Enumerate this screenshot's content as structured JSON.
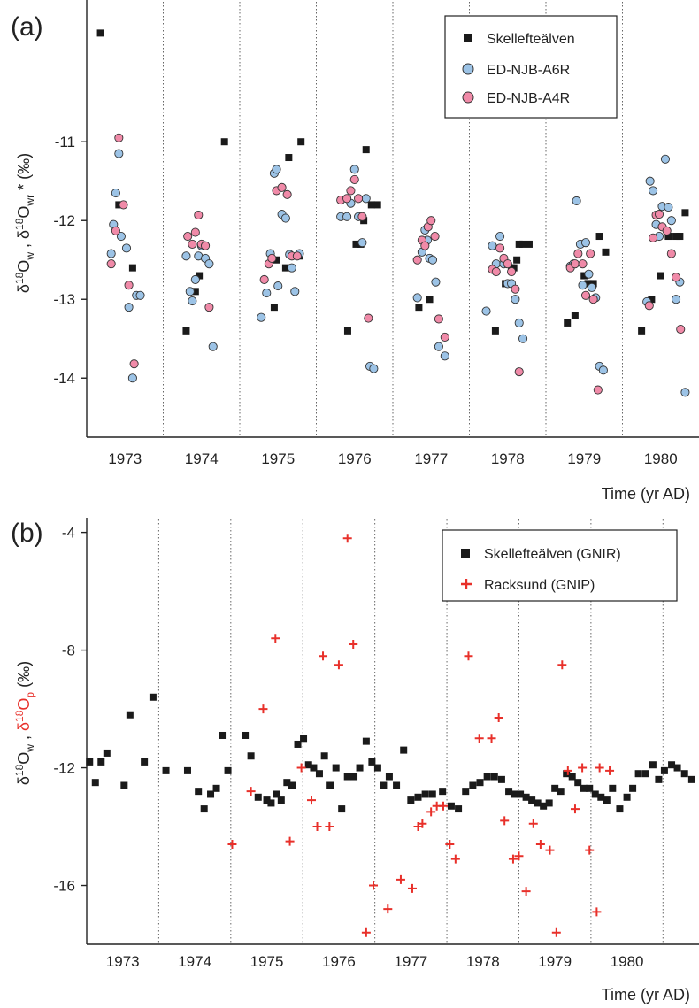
{
  "chart_data": [
    {
      "panel": "(a)",
      "type": "scatter",
      "xlabel": "Time (yr AD)",
      "ylabel": {
        "base": "δ",
        "sup1": "18",
        "o1": "O",
        "sub1": "w",
        "sep": " ,  δ",
        "sup2": "18",
        "o2": "O",
        "sub2": "wr",
        "tail": " * (‰)"
      },
      "ylim": [
        -14.75,
        -9.2
      ],
      "yticks": [
        -11,
        -12,
        -13,
        -14
      ],
      "xlim": [
        1973.0,
        1981.0
      ],
      "year_labels": [
        "1973",
        "1974",
        "1975",
        "1976",
        "1977",
        "1978",
        "1979",
        "1980"
      ],
      "legend": {
        "position": "top-right",
        "entries": [
          "Skellefteälven",
          "ED-NJB-A6R",
          "ED-NJB-A4R"
        ]
      },
      "colors": {
        "skelleftealven": "#1a1a1a",
        "a6r": "#9cc3e6",
        "a4r": "#f08aa8",
        "edge": "#333333"
      },
      "series": [
        {
          "name": "Skellefteälven",
          "marker": "square",
          "x": [
            1973.18,
            1973.42,
            1973.6,
            1974.3,
            1974.42,
            1974.47,
            1974.8,
            1975.45,
            1975.48,
            1975.6,
            1975.64,
            1975.78,
            1975.8,
            1976.41,
            1976.52,
            1976.58,
            1976.62,
            1976.65,
            1976.72,
            1976.8,
            1977.34,
            1977.48,
            1978.34,
            1978.47,
            1978.55,
            1978.58,
            1978.62,
            1978.65,
            1978.7,
            1978.78,
            1979.28,
            1979.38,
            1979.5,
            1979.55,
            1979.62,
            1979.7,
            1979.78,
            1980.25,
            1980.38,
            1980.5,
            1980.6,
            1980.7,
            1980.75,
            1980.82
          ],
          "y": [
            -9.62,
            -11.8,
            -12.6,
            -13.4,
            -12.9,
            -12.7,
            -11.0,
            -13.1,
            -12.5,
            -12.6,
            -11.2,
            -12.45,
            -11.0,
            -13.4,
            -12.3,
            -12.3,
            -12.0,
            -11.1,
            -11.8,
            -11.8,
            -13.1,
            -13.0,
            -13.4,
            -12.8,
            -12.6,
            -12.6,
            -12.5,
            -12.3,
            -12.3,
            -12.3,
            -13.3,
            -13.2,
            -12.7,
            -12.8,
            -12.8,
            -12.2,
            -12.4,
            -13.4,
            -13.0,
            -12.7,
            -12.2,
            -12.2,
            -12.2,
            -11.9
          ]
        },
        {
          "name": "ED-NJB-A6R",
          "marker": "circle",
          "x": [
            1973.32,
            1973.35,
            1973.38,
            1973.42,
            1973.45,
            1973.52,
            1973.55,
            1973.6,
            1973.65,
            1973.7,
            1974.3,
            1974.35,
            1974.38,
            1974.42,
            1974.46,
            1974.5,
            1974.55,
            1974.6,
            1974.65,
            1975.28,
            1975.35,
            1975.4,
            1975.45,
            1975.48,
            1975.5,
            1975.55,
            1975.6,
            1975.65,
            1975.68,
            1975.72,
            1975.78,
            1976.32,
            1976.4,
            1976.45,
            1976.5,
            1976.55,
            1976.6,
            1976.65,
            1976.7,
            1976.75,
            1977.32,
            1977.38,
            1977.42,
            1977.45,
            1977.48,
            1977.52,
            1977.56,
            1977.6,
            1977.68,
            1978.22,
            1978.3,
            1978.35,
            1978.4,
            1978.45,
            1978.5,
            1978.55,
            1978.6,
            1978.65,
            1978.7,
            1979.32,
            1979.36,
            1979.4,
            1979.45,
            1979.48,
            1979.52,
            1979.56,
            1979.6,
            1979.65,
            1979.7,
            1979.75,
            1980.32,
            1980.36,
            1980.4,
            1980.44,
            1980.48,
            1980.52,
            1980.56,
            1980.6,
            1980.64,
            1980.7,
            1980.75,
            1980.82
          ],
          "y": [
            -12.42,
            -12.05,
            -11.65,
            -11.15,
            -12.2,
            -12.35,
            -13.1,
            -14.0,
            -12.95,
            -12.95,
            -12.45,
            -12.9,
            -13.02,
            -12.75,
            -12.45,
            -12.32,
            -12.48,
            -12.55,
            -13.6,
            -13.23,
            -12.92,
            -12.42,
            -11.4,
            -11.35,
            -12.83,
            -11.92,
            -11.97,
            -12.43,
            -12.6,
            -12.9,
            -12.42,
            -11.95,
            -11.95,
            -11.78,
            -11.35,
            -11.95,
            -12.28,
            -11.72,
            -13.85,
            -13.88,
            -12.98,
            -12.4,
            -12.12,
            -12.25,
            -12.48,
            -12.5,
            -12.78,
            -13.6,
            -13.72,
            -13.15,
            -12.32,
            -12.55,
            -12.2,
            -12.55,
            -12.8,
            -12.8,
            -13.0,
            -13.3,
            -13.5,
            -12.58,
            -12.55,
            -11.75,
            -12.3,
            -12.82,
            -12.28,
            -12.68,
            -12.85,
            -12.98,
            -13.85,
            -13.9,
            -13.03,
            -11.5,
            -11.62,
            -12.05,
            -12.2,
            -11.82,
            -11.22,
            -11.83,
            -12.0,
            -13.0,
            -12.78,
            -14.18
          ]
        },
        {
          "name": "ED-NJB-A4R",
          "marker": "circle",
          "x": [
            1973.32,
            1973.38,
            1973.42,
            1973.48,
            1973.55,
            1973.62,
            1974.32,
            1974.38,
            1974.42,
            1974.46,
            1974.5,
            1974.55,
            1974.6,
            1975.32,
            1975.38,
            1975.42,
            1975.48,
            1975.55,
            1975.62,
            1975.68,
            1975.75,
            1976.32,
            1976.4,
            1976.45,
            1976.5,
            1976.55,
            1976.6,
            1976.68,
            1977.32,
            1977.38,
            1977.42,
            1977.46,
            1977.5,
            1977.55,
            1977.6,
            1977.68,
            1978.3,
            1978.35,
            1978.4,
            1978.45,
            1978.5,
            1978.55,
            1978.6,
            1978.65,
            1979.32,
            1979.38,
            1979.42,
            1979.48,
            1979.52,
            1979.58,
            1979.62,
            1979.68,
            1980.35,
            1980.4,
            1980.44,
            1980.48,
            1980.52,
            1980.58,
            1980.64,
            1980.7,
            1980.76
          ],
          "y": [
            -12.55,
            -12.13,
            -10.95,
            -11.8,
            -12.82,
            -13.82,
            -12.2,
            -12.3,
            -12.15,
            -11.93,
            -12.3,
            -12.32,
            -13.1,
            -12.75,
            -12.55,
            -12.48,
            -11.62,
            -11.58,
            -11.67,
            -12.45,
            -12.45,
            -11.74,
            -11.72,
            -11.62,
            -11.48,
            -11.72,
            -11.95,
            -13.24,
            -12.5,
            -12.25,
            -12.32,
            -12.08,
            -12.0,
            -12.2,
            -13.25,
            -13.48,
            -12.62,
            -12.65,
            -12.35,
            -12.48,
            -12.55,
            -12.65,
            -12.87,
            -13.92,
            -12.6,
            -12.55,
            -12.42,
            -12.55,
            -12.95,
            -12.42,
            -13.0,
            -14.15,
            -13.08,
            -12.22,
            -11.93,
            -11.92,
            -12.08,
            -12.13,
            -12.42,
            -12.72,
            -13.38
          ]
        }
      ]
    },
    {
      "panel": "(b)",
      "type": "scatter",
      "xlabel": "Time (yr AD)",
      "ylabel": {
        "base": "δ",
        "sup1": "18",
        "o1": "O",
        "sub1": "w",
        "sep": " ,  ",
        "red_base": "δ",
        "sup2": "18",
        "o2": "O",
        "sub2": "p",
        "tail": " (‰)"
      },
      "ylim": [
        -18.0,
        -3.5
      ],
      "yticks": [
        -4,
        -8,
        -12,
        -16
      ],
      "xlim": [
        1972.5,
        1981.0
      ],
      "year_labels": [
        "1973",
        "1974",
        "1975",
        "1976",
        "1977",
        "1978",
        "1979",
        "1980"
      ],
      "legend": {
        "position": "top-right",
        "entries": [
          "Skellefteälven (GNIR)",
          "Racksund (GNIP)"
        ]
      },
      "colors": {
        "gnir": "#1a1a1a",
        "gnip": "#e8302a"
      },
      "series": [
        {
          "name": "Skellefteälven (GNIR)",
          "marker": "square",
          "x": [
            1972.54,
            1972.62,
            1972.7,
            1972.78,
            1973.02,
            1973.1,
            1973.3,
            1973.42,
            1973.6,
            1973.9,
            1974.05,
            1974.13,
            1974.22,
            1974.3,
            1974.38,
            1974.46,
            1974.7,
            1974.78,
            1974.88,
            1975.0,
            1975.06,
            1975.13,
            1975.2,
            1975.28,
            1975.35,
            1975.43,
            1975.51,
            1975.58,
            1975.65,
            1975.73,
            1975.8,
            1975.88,
            1975.96,
            1976.04,
            1976.12,
            1976.21,
            1976.29,
            1976.38,
            1976.46,
            1976.54,
            1976.62,
            1976.7,
            1976.8,
            1976.9,
            1977.0,
            1977.1,
            1977.2,
            1977.3,
            1977.44,
            1977.56,
            1977.66,
            1977.76,
            1977.86,
            1977.96,
            1978.06,
            1978.16,
            1978.26,
            1978.36,
            1978.44,
            1978.52,
            1978.6,
            1978.68,
            1978.76,
            1978.84,
            1978.92,
            1979.0,
            1979.08,
            1979.16,
            1979.24,
            1979.32,
            1979.4,
            1979.48,
            1979.56,
            1979.64,
            1979.72,
            1979.8,
            1979.9,
            1980.0,
            1980.08,
            1980.16,
            1980.26,
            1980.36,
            1980.44,
            1980.52,
            1980.62,
            1980.7,
            1980.8,
            1980.9
          ],
          "y": [
            -11.8,
            -12.5,
            -11.8,
            -11.5,
            -12.6,
            -10.2,
            -11.8,
            -9.6,
            -12.1,
            -12.1,
            -12.8,
            -13.4,
            -12.9,
            -12.7,
            -10.9,
            -12.1,
            -10.9,
            -11.6,
            -13.0,
            -13.1,
            -13.2,
            -12.9,
            -13.1,
            -12.5,
            -12.6,
            -11.2,
            -11.0,
            -11.9,
            -12.0,
            -12.2,
            -11.6,
            -12.6,
            -12.0,
            -13.4,
            -12.3,
            -12.3,
            -12.0,
            -11.1,
            -11.8,
            -12.0,
            -12.6,
            -12.3,
            -12.6,
            -11.4,
            -13.1,
            -13.0,
            -12.9,
            -12.9,
            -12.8,
            -13.3,
            -13.4,
            -12.8,
            -12.6,
            -12.5,
            -12.3,
            -12.3,
            -12.4,
            -12.8,
            -12.9,
            -12.9,
            -13.0,
            -13.1,
            -13.2,
            -13.3,
            -13.2,
            -12.7,
            -12.8,
            -12.2,
            -12.3,
            -12.5,
            -12.7,
            -12.7,
            -12.9,
            -13.0,
            -13.1,
            -12.7,
            -13.4,
            -13.0,
            -12.7,
            -12.2,
            -12.2,
            -11.9,
            -12.4,
            -12.1,
            -11.9,
            -12.0,
            -12.2,
            -12.4
          ]
        },
        {
          "name": "Racksund (GNIP)",
          "marker": "plus",
          "x": [
            1974.52,
            1974.78,
            1974.95,
            1975.12,
            1975.32,
            1975.48,
            1975.62,
            1975.7,
            1975.78,
            1975.87,
            1976.0,
            1976.12,
            1976.2,
            1976.38,
            1976.48,
            1976.68,
            1976.86,
            1977.02,
            1977.1,
            1977.16,
            1977.28,
            1977.36,
            1977.45,
            1977.54,
            1977.62,
            1977.8,
            1977.95,
            1978.12,
            1978.22,
            1978.3,
            1978.42,
            1978.5,
            1978.6,
            1978.7,
            1978.8,
            1978.93,
            1979.02,
            1979.1,
            1979.18,
            1979.28,
            1979.38,
            1979.48,
            1979.58,
            1979.62,
            1979.76
          ],
          "y": [
            -14.6,
            -12.8,
            -10.0,
            -7.6,
            -14.5,
            -12.0,
            -13.1,
            -14.0,
            -8.2,
            -14.0,
            -8.5,
            -4.2,
            -7.8,
            -17.6,
            -16.0,
            -16.8,
            -15.8,
            -16.1,
            -14.0,
            -13.9,
            -13.5,
            -13.3,
            -13.3,
            -14.6,
            -15.1,
            -8.2,
            -11.0,
            -11.0,
            -10.3,
            -13.8,
            -15.1,
            -15.0,
            -16.2,
            -13.9,
            -14.6,
            -14.8,
            -17.6,
            -8.5,
            -12.1,
            -13.4,
            -12.0,
            -14.8,
            -16.9,
            -12.0,
            -12.1
          ]
        }
      ]
    }
  ]
}
